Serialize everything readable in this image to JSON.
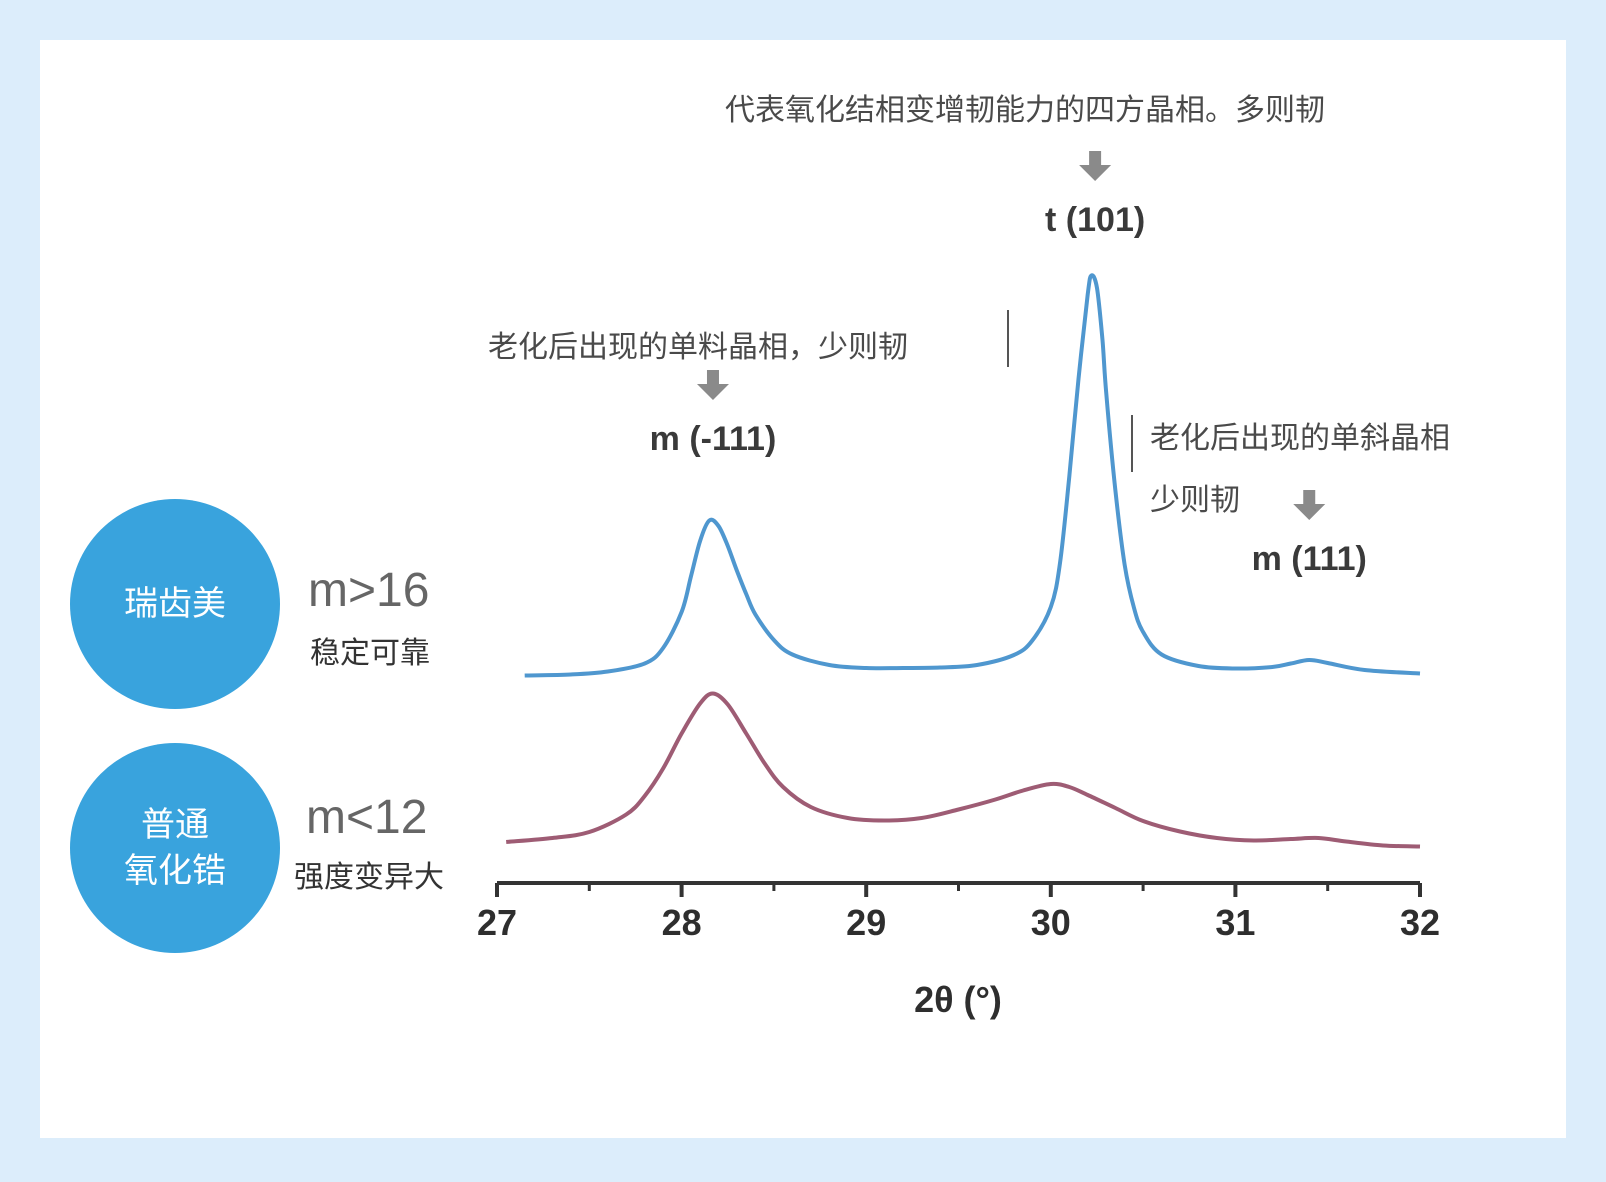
{
  "badges": [
    {
      "label": "瑞齿美",
      "color": "#39a3dd",
      "stat": "m>16",
      "note": "稳定可靠"
    },
    {
      "label": "普通\n氧化锆",
      "color": "#39a3dd",
      "stat": "m<12",
      "note": "强度变异大"
    }
  ],
  "annotations": {
    "top": "代表氧化结相变增韧能力的四方晶相。多则韧",
    "left": "老化后出现的单料晶相，少则韧",
    "right_line1": "老化后出现的单斜晶相",
    "right_line2": "少则韧"
  },
  "chart_data": {
    "type": "line",
    "xlabel": "2θ (°)",
    "ylabel": "",
    "xlim": [
      27,
      32
    ],
    "xticks": [
      27,
      28,
      29,
      30,
      31,
      32
    ],
    "grid": false,
    "colors": {
      "series_1": "#4f97cf",
      "series_2": "#9e5c74",
      "axis": "#333333",
      "arrow": "#8a8a8a"
    },
    "peak_labels": [
      {
        "text": "m (-111)",
        "x": 28.17
      },
      {
        "text": "t (101)",
        "x": 30.24
      },
      {
        "text": "m (111)",
        "x": 31.4
      }
    ],
    "series": [
      {
        "x": [
          27.15,
          27.4,
          27.6,
          27.8,
          27.9,
          28.0,
          28.05,
          28.1,
          28.15,
          28.2,
          28.25,
          28.3,
          28.35,
          28.4,
          28.5,
          28.6,
          28.8,
          29.0,
          29.2,
          29.4,
          29.6,
          29.8,
          29.9,
          30.0,
          30.05,
          30.1,
          30.15,
          30.2,
          30.22,
          30.25,
          30.28,
          30.3,
          30.35,
          30.4,
          30.45,
          30.5,
          30.6,
          30.8,
          31.0,
          31.2,
          31.3,
          31.4,
          31.5,
          31.7,
          32.0
        ],
        "y": [
          0.3,
          0.5,
          1.1,
          2.7,
          5.8,
          13.0,
          20.0,
          27.2,
          31.3,
          30.2,
          26.2,
          21.2,
          16.6,
          12.5,
          7.4,
          4.5,
          2.4,
          1.8,
          1.8,
          1.9,
          2.4,
          4.4,
          7.3,
          14.0,
          22.8,
          40.1,
          59.6,
          76.5,
          80.3,
          77.8,
          67.4,
          56.9,
          37.3,
          22.5,
          13.9,
          9.0,
          4.5,
          2.2,
          1.7,
          2.0,
          2.7,
          3.4,
          2.8,
          1.4,
          0.7
        ]
      },
      {
        "x": [
          27.05,
          27.3,
          27.5,
          27.7,
          27.8,
          27.9,
          28.0,
          28.1,
          28.17,
          28.25,
          28.35,
          28.45,
          28.55,
          28.7,
          28.9,
          29.1,
          29.3,
          29.5,
          29.7,
          29.85,
          30.0,
          30.1,
          30.2,
          30.35,
          30.5,
          30.7,
          30.9,
          31.1,
          31.3,
          31.45,
          31.6,
          31.8,
          32.0
        ],
        "y": [
          1.8,
          2.6,
          3.8,
          7.3,
          11.0,
          16.5,
          23.5,
          29.5,
          31.5,
          29.3,
          23.5,
          17.5,
          12.8,
          8.8,
          6.6,
          6.1,
          6.6,
          8.3,
          10.3,
          12.1,
          13.4,
          12.8,
          11.2,
          8.6,
          6.0,
          3.9,
          2.6,
          2.1,
          2.4,
          2.6,
          1.9,
          1.1,
          0.9
        ]
      }
    ]
  }
}
